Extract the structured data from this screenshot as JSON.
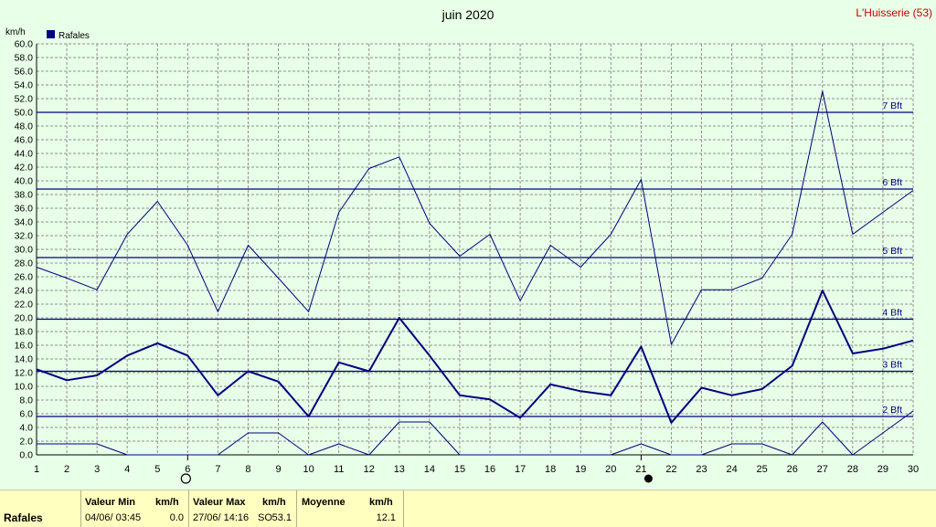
{
  "chart_data": {
    "type": "line",
    "title": "juin 2020",
    "station": "L'Huisserie (53)",
    "ylabel": "km/h",
    "ylim": [
      0,
      60
    ],
    "ytick_step": 2,
    "x": [
      1,
      2,
      3,
      4,
      5,
      6,
      7,
      8,
      9,
      10,
      11,
      12,
      13,
      14,
      15,
      16,
      17,
      18,
      19,
      20,
      21,
      22,
      23,
      24,
      25,
      26,
      27,
      28,
      29,
      30
    ],
    "legend": {
      "label": "Rafales",
      "position": "top-left",
      "color": "#000080"
    },
    "series": [
      {
        "role": "max",
        "values": [
          27.4,
          25.8,
          24.1,
          32.2,
          37.0,
          30.6,
          20.9,
          30.6,
          25.8,
          20.9,
          35.4,
          41.8,
          43.5,
          33.8,
          29.0,
          32.2,
          22.5,
          30.6,
          27.4,
          32.2,
          40.2,
          16.1,
          24.1,
          24.1,
          25.8,
          32.2,
          53.1,
          32.2,
          35.4,
          38.6
        ],
        "color": "#000080",
        "width": 1
      },
      {
        "role": "mean",
        "values": [
          12.5,
          10.9,
          11.6,
          14.5,
          16.3,
          14.5,
          8.7,
          12.2,
          10.7,
          5.6,
          13.5,
          12.2,
          20.0,
          14.5,
          8.7,
          8.1,
          5.4,
          10.3,
          9.3,
          8.7,
          15.8,
          4.7,
          9.8,
          8.7,
          9.6,
          13.0,
          24.0,
          14.8,
          15.5,
          16.7
        ],
        "color": "#000080",
        "width": 2
      },
      {
        "role": "min",
        "values": [
          1.6,
          1.6,
          1.6,
          0.0,
          0.0,
          0.0,
          0.0,
          3.2,
          3.2,
          0.0,
          1.6,
          0.0,
          4.8,
          4.8,
          0.0,
          0.0,
          0.0,
          0.0,
          0.0,
          0.0,
          1.6,
          0.0,
          0.0,
          1.6,
          1.6,
          0.0,
          4.8,
          0.0,
          3.2,
          6.4
        ],
        "color": "#000080",
        "width": 1
      }
    ],
    "beaufort": [
      {
        "label": "2 Bft",
        "value": 5.6
      },
      {
        "label": "3 Bft",
        "value": 12.2
      },
      {
        "label": "4 Bft",
        "value": 19.8
      },
      {
        "label": "5 Bft",
        "value": 28.8
      },
      {
        "label": "6 Bft",
        "value": 38.8
      },
      {
        "label": "7 Bft",
        "value": 50.0
      }
    ],
    "moon_phases": [
      {
        "day": 6,
        "phase": "full-moon-icon"
      },
      {
        "day": 21,
        "phase": "new-moon-icon"
      }
    ],
    "colors": {
      "background": "#e8ffe8",
      "series": "#000080",
      "grid": "#909090",
      "station": "#cc0000"
    },
    "grid": true
  },
  "footer": {
    "series_label": "Rafales",
    "min": {
      "header": "Valeur Min",
      "unit": "km/h",
      "date": "04/06/  03:45",
      "value": "0.0"
    },
    "max": {
      "header": "Valeur Max",
      "unit": "km/h",
      "date": "27/06/  14:16",
      "dir": "SO",
      "value": "53.1"
    },
    "mean": {
      "header": "Moyenne",
      "unit": "km/h",
      "value": "12.1"
    }
  }
}
